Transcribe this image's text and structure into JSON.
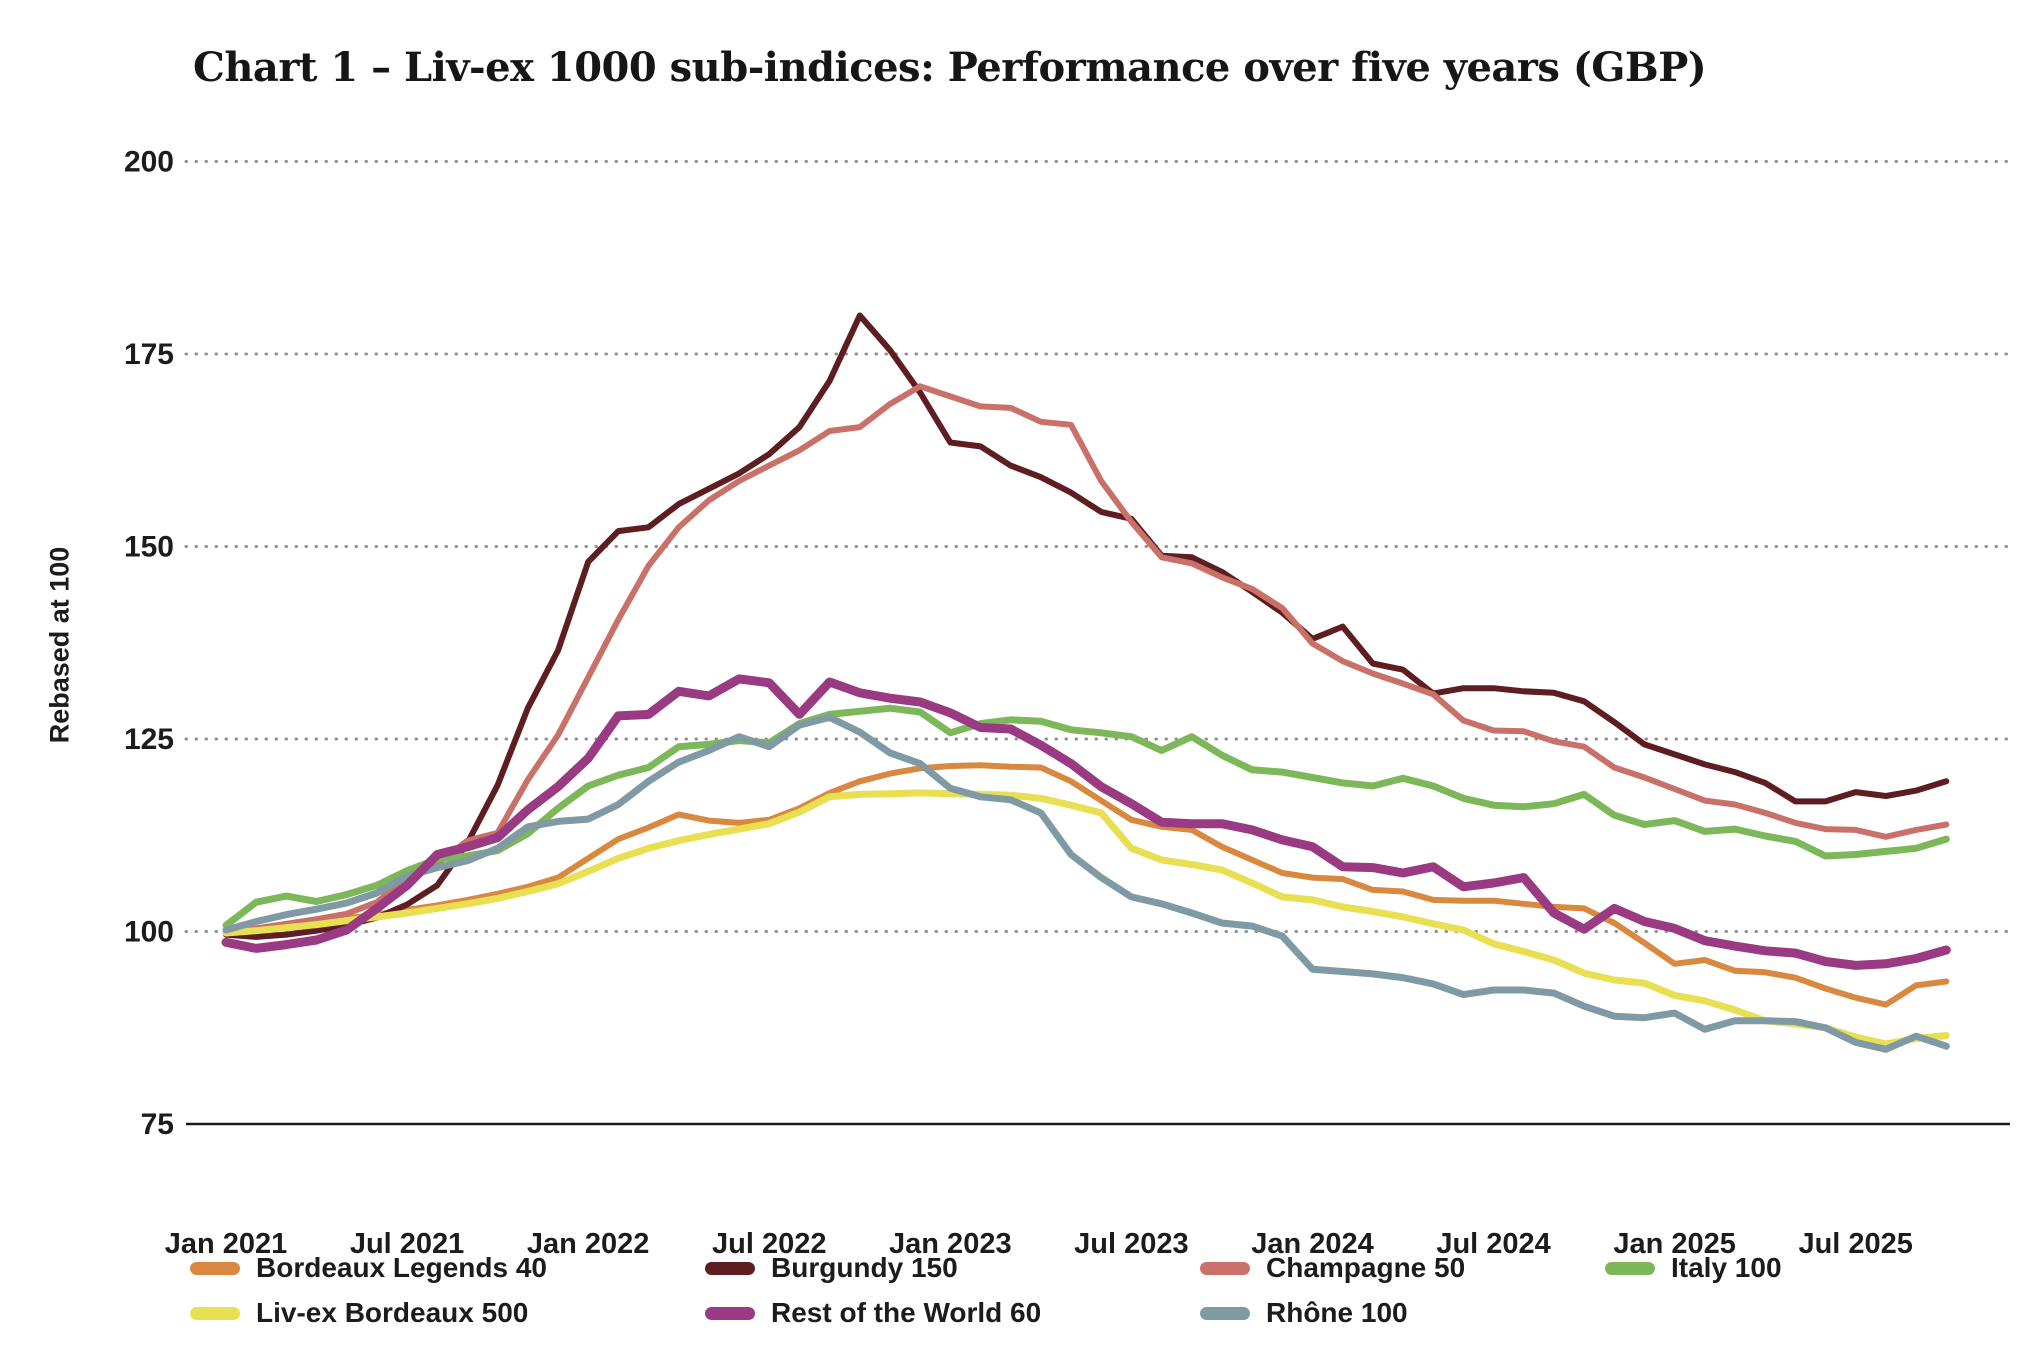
{
  "page": {
    "title": "Chart 1 – Liv-ex 1000 sub-indices: Performance over five years (GBP)"
  },
  "chart_data": {
    "type": "line",
    "title": "Chart 1 – Liv-ex 1000 sub-indices: Performance over five years (GBP)",
    "xlabel": "",
    "ylabel": "Rebased at 100",
    "ylim": [
      75,
      200
    ],
    "yticks": [
      200,
      175,
      150,
      125,
      100,
      75
    ],
    "grid": "horizontal-dotted",
    "legend_position": "bottom",
    "x_unit": "month",
    "x_start_label": "Jan 2021",
    "x_end_label": "Oct 2025",
    "x_tick_labels": [
      "Jan 2021",
      "Jul 2021",
      "Jan 2022",
      "Jul 2022",
      "Jan 2023",
      "Jul 2023",
      "Jan 2024",
      "Jul 2024",
      "Jan 2025",
      "Jul 2025"
    ],
    "legend_rows": [
      [
        "Bordeaux Legends 40",
        "Burgundy 150",
        "Champagne 50",
        "Italy 100"
      ],
      [
        "Liv-ex Bordeaux 500",
        "Rest of the World 60",
        "Rhône 100"
      ]
    ],
    "series": [
      {
        "name": "Bordeaux Legends 40",
        "color": "#d9883f",
        "values": [
          99.9,
          100.2,
          100.7,
          101.2,
          101.7,
          102.2,
          102.8,
          103.4,
          104.1,
          104.9,
          105.8,
          107.0,
          109.5,
          112.0,
          113.5,
          115.2,
          114.4,
          114.1,
          114.5,
          116.0,
          118.0,
          119.5,
          120.5,
          121.2,
          121.5,
          121.6,
          121.4,
          121.3,
          119.5,
          117.0,
          114.5,
          113.6,
          113.2,
          111.0,
          109.3,
          107.6,
          107.0,
          106.8,
          105.4,
          105.2,
          104.1,
          104.0,
          104.0,
          103.6,
          103.2,
          103.0,
          101.1,
          98.5,
          95.8,
          96.3,
          94.9,
          94.7,
          94.0,
          92.6,
          91.4,
          90.5,
          93.0,
          93.5
        ]
      },
      {
        "name": "Burgundy 150",
        "color": "#5e1d20",
        "values": [
          99.6,
          99.3,
          99.6,
          100.1,
          100.8,
          101.8,
          103.5,
          106.0,
          111.5,
          119.0,
          129.0,
          136.5,
          148.0,
          152.0,
          152.5,
          155.5,
          157.5,
          159.5,
          162.0,
          165.5,
          171.5,
          180.0,
          175.5,
          170.0,
          163.5,
          163.0,
          160.5,
          159.0,
          157.0,
          154.5,
          153.6,
          148.8,
          148.6,
          146.7,
          144.1,
          141.4,
          138.0,
          139.6,
          134.8,
          134.0,
          130.9,
          131.6,
          131.6,
          131.2,
          131.0,
          129.9,
          127.2,
          124.3,
          123.0,
          121.7,
          120.7,
          119.3,
          116.9,
          116.9,
          118.1,
          117.6,
          118.3,
          119.5
        ]
      },
      {
        "name": "Champagne 50",
        "color": "#c97168",
        "values": [
          100.0,
          100.4,
          101.0,
          101.6,
          102.3,
          103.8,
          107.0,
          108.8,
          111.8,
          112.8,
          119.7,
          125.5,
          133.0,
          140.5,
          147.5,
          152.5,
          156.0,
          158.5,
          160.5,
          162.5,
          165.0,
          165.5,
          168.5,
          170.8,
          169.5,
          168.2,
          168.0,
          166.2,
          165.8,
          158.5,
          153.2,
          148.6,
          147.8,
          146.0,
          144.5,
          142.0,
          137.4,
          135.1,
          133.5,
          132.2,
          130.8,
          127.4,
          126.1,
          126.0,
          124.7,
          124.0,
          121.3,
          120.0,
          118.5,
          117.0,
          116.5,
          115.4,
          114.1,
          113.3,
          113.2,
          112.3,
          113.2,
          113.9
        ]
      },
      {
        "name": "Italy 100",
        "color": "#7cb85a",
        "values": [
          100.8,
          103.8,
          104.6,
          103.9,
          104.8,
          106.0,
          107.9,
          109.4,
          109.8,
          110.5,
          112.7,
          116.0,
          118.9,
          120.3,
          121.3,
          124.0,
          124.3,
          124.8,
          124.5,
          127.0,
          128.2,
          128.6,
          129.0,
          128.5,
          125.8,
          127.0,
          127.5,
          127.3,
          126.2,
          125.8,
          125.3,
          123.5,
          125.3,
          122.9,
          121.0,
          120.7,
          120.0,
          119.3,
          118.9,
          119.9,
          118.9,
          117.3,
          116.4,
          116.2,
          116.6,
          117.8,
          115.1,
          113.9,
          114.4,
          113.0,
          113.3,
          112.4,
          111.7,
          109.8,
          110.0,
          110.4,
          110.8,
          112.0
        ]
      },
      {
        "name": "Liv-ex Bordeaux 500",
        "color": "#e9df52",
        "values": [
          99.8,
          100.1,
          100.5,
          100.9,
          101.4,
          101.9,
          102.4,
          103.0,
          103.6,
          104.3,
          105.2,
          106.2,
          107.8,
          109.5,
          110.8,
          111.8,
          112.6,
          113.3,
          114.0,
          115.5,
          117.5,
          117.8,
          117.9,
          118.0,
          117.9,
          117.8,
          117.7,
          117.3,
          116.4,
          115.4,
          110.8,
          109.3,
          108.7,
          108.0,
          106.3,
          104.5,
          104.1,
          103.2,
          102.6,
          101.9,
          101.0,
          100.2,
          98.4,
          97.4,
          96.3,
          94.6,
          93.7,
          93.3,
          91.7,
          91.0,
          89.8,
          88.4,
          88.0,
          87.5,
          86.3,
          85.4,
          86.1,
          86.5
        ]
      },
      {
        "name": "Rest of the World 60",
        "color": "#993a82",
        "values": [
          98.6,
          97.8,
          98.3,
          98.9,
          100.2,
          103.0,
          106.0,
          110.0,
          111.0,
          112.2,
          115.8,
          118.8,
          122.5,
          128.0,
          128.2,
          131.2,
          130.6,
          132.8,
          132.3,
          128.2,
          132.4,
          131.0,
          130.3,
          129.8,
          128.4,
          126.5,
          126.3,
          124.2,
          121.8,
          118.8,
          116.6,
          114.2,
          114.0,
          114.0,
          113.2,
          111.9,
          111.0,
          108.4,
          108.3,
          107.6,
          108.4,
          105.8,
          106.3,
          107.0,
          102.4,
          100.3,
          103.0,
          101.3,
          100.4,
          98.8,
          98.1,
          97.5,
          97.2,
          96.1,
          95.6,
          95.8,
          96.5,
          97.6
        ]
      },
      {
        "name": "Rhône 100",
        "color": "#7f9aa5",
        "values": [
          100.2,
          101.3,
          102.2,
          102.9,
          103.7,
          105.0,
          107.2,
          108.3,
          109.2,
          110.8,
          113.6,
          114.3,
          114.6,
          116.5,
          119.5,
          122.0,
          123.5,
          125.3,
          124.0,
          126.8,
          127.8,
          125.9,
          123.2,
          121.8,
          118.6,
          117.5,
          117.1,
          115.4,
          110.0,
          107.0,
          104.5,
          103.6,
          102.4,
          101.1,
          100.7,
          99.4,
          95.1,
          94.8,
          94.5,
          94.0,
          93.2,
          91.8,
          92.4,
          92.4,
          92.0,
          90.3,
          89.0,
          88.8,
          89.4,
          87.3,
          88.4,
          88.4,
          88.3,
          87.5,
          85.6,
          84.7,
          86.4,
          85.1
        ]
      }
    ]
  }
}
